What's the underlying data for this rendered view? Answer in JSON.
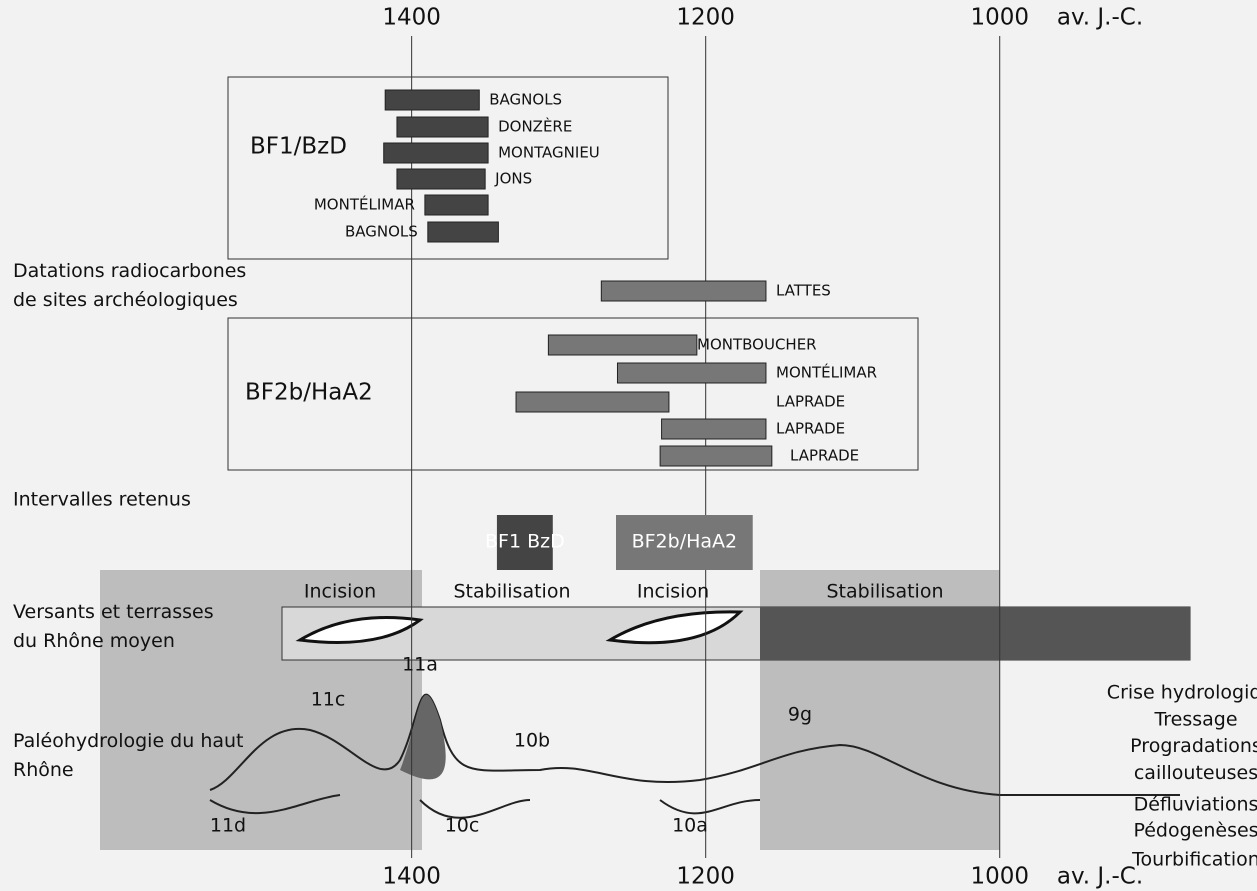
{
  "chart_data": {
    "type": "range",
    "xlim": [
      1680,
      825
    ],
    "xticks": [
      1400,
      1200,
      1000
    ],
    "axis_unit": "av. J.-C.",
    "groups": [
      {
        "label": "BF1/BzD",
        "bars": [
          {
            "name": "BAGNOLS",
            "start": 1418,
            "end": 1354
          },
          {
            "name": "DONZÈRE",
            "start": 1410,
            "end": 1348
          },
          {
            "name": "MONTAGNIEU",
            "start": 1419,
            "end": 1348
          },
          {
            "name": "JONS",
            "start": 1410,
            "end": 1350
          },
          {
            "name": "MONTÉLIMAR",
            "start": 1391,
            "end": 1348
          },
          {
            "name": "BAGNOLS",
            "start": 1389,
            "end": 1341
          }
        ]
      },
      {
        "label": "",
        "bars": [
          {
            "name": "LATTES",
            "start": 1271,
            "end": 1159
          }
        ]
      },
      {
        "label": "BF2b/HaA2",
        "bars": [
          {
            "name": "MONTBOUCHER",
            "start": 1307,
            "end": 1206
          },
          {
            "name": "MONTÉLIMAR",
            "start": 1260,
            "end": 1159
          },
          {
            "name": "LAPRADE",
            "start": 1329,
            "end": 1225
          },
          {
            "name": "LAPRADE",
            "start": 1230,
            "end": 1159
          },
          {
            "name": "LAPRADE",
            "start": 1231,
            "end": 1155
          }
        ]
      }
    ],
    "intervals": [
      {
        "label": "BF1 BzD",
        "start": 1342,
        "end": 1304
      },
      {
        "label": "BF2b/HaA2",
        "start": 1261,
        "end": 1168
      }
    ],
    "row_labels": [
      "Datations radiocarbones de sites archéologiques",
      "Intervalles retenus",
      "Versants et terrasses du Rhône moyen",
      "Paléohydrologie du haut Rhône"
    ],
    "phases": [
      "Incision",
      "Stabilisation",
      "Incision",
      "Stabilisation"
    ],
    "curve_labels": [
      "11c",
      "11a",
      "10b",
      "11d",
      "10c",
      "10a",
      "9g"
    ],
    "legend": [
      "Crise hydrologique",
      "Tressage",
      "Progradations caillouteuses",
      "Défluviations",
      "Pédogenèses",
      "Tourbification"
    ]
  }
}
